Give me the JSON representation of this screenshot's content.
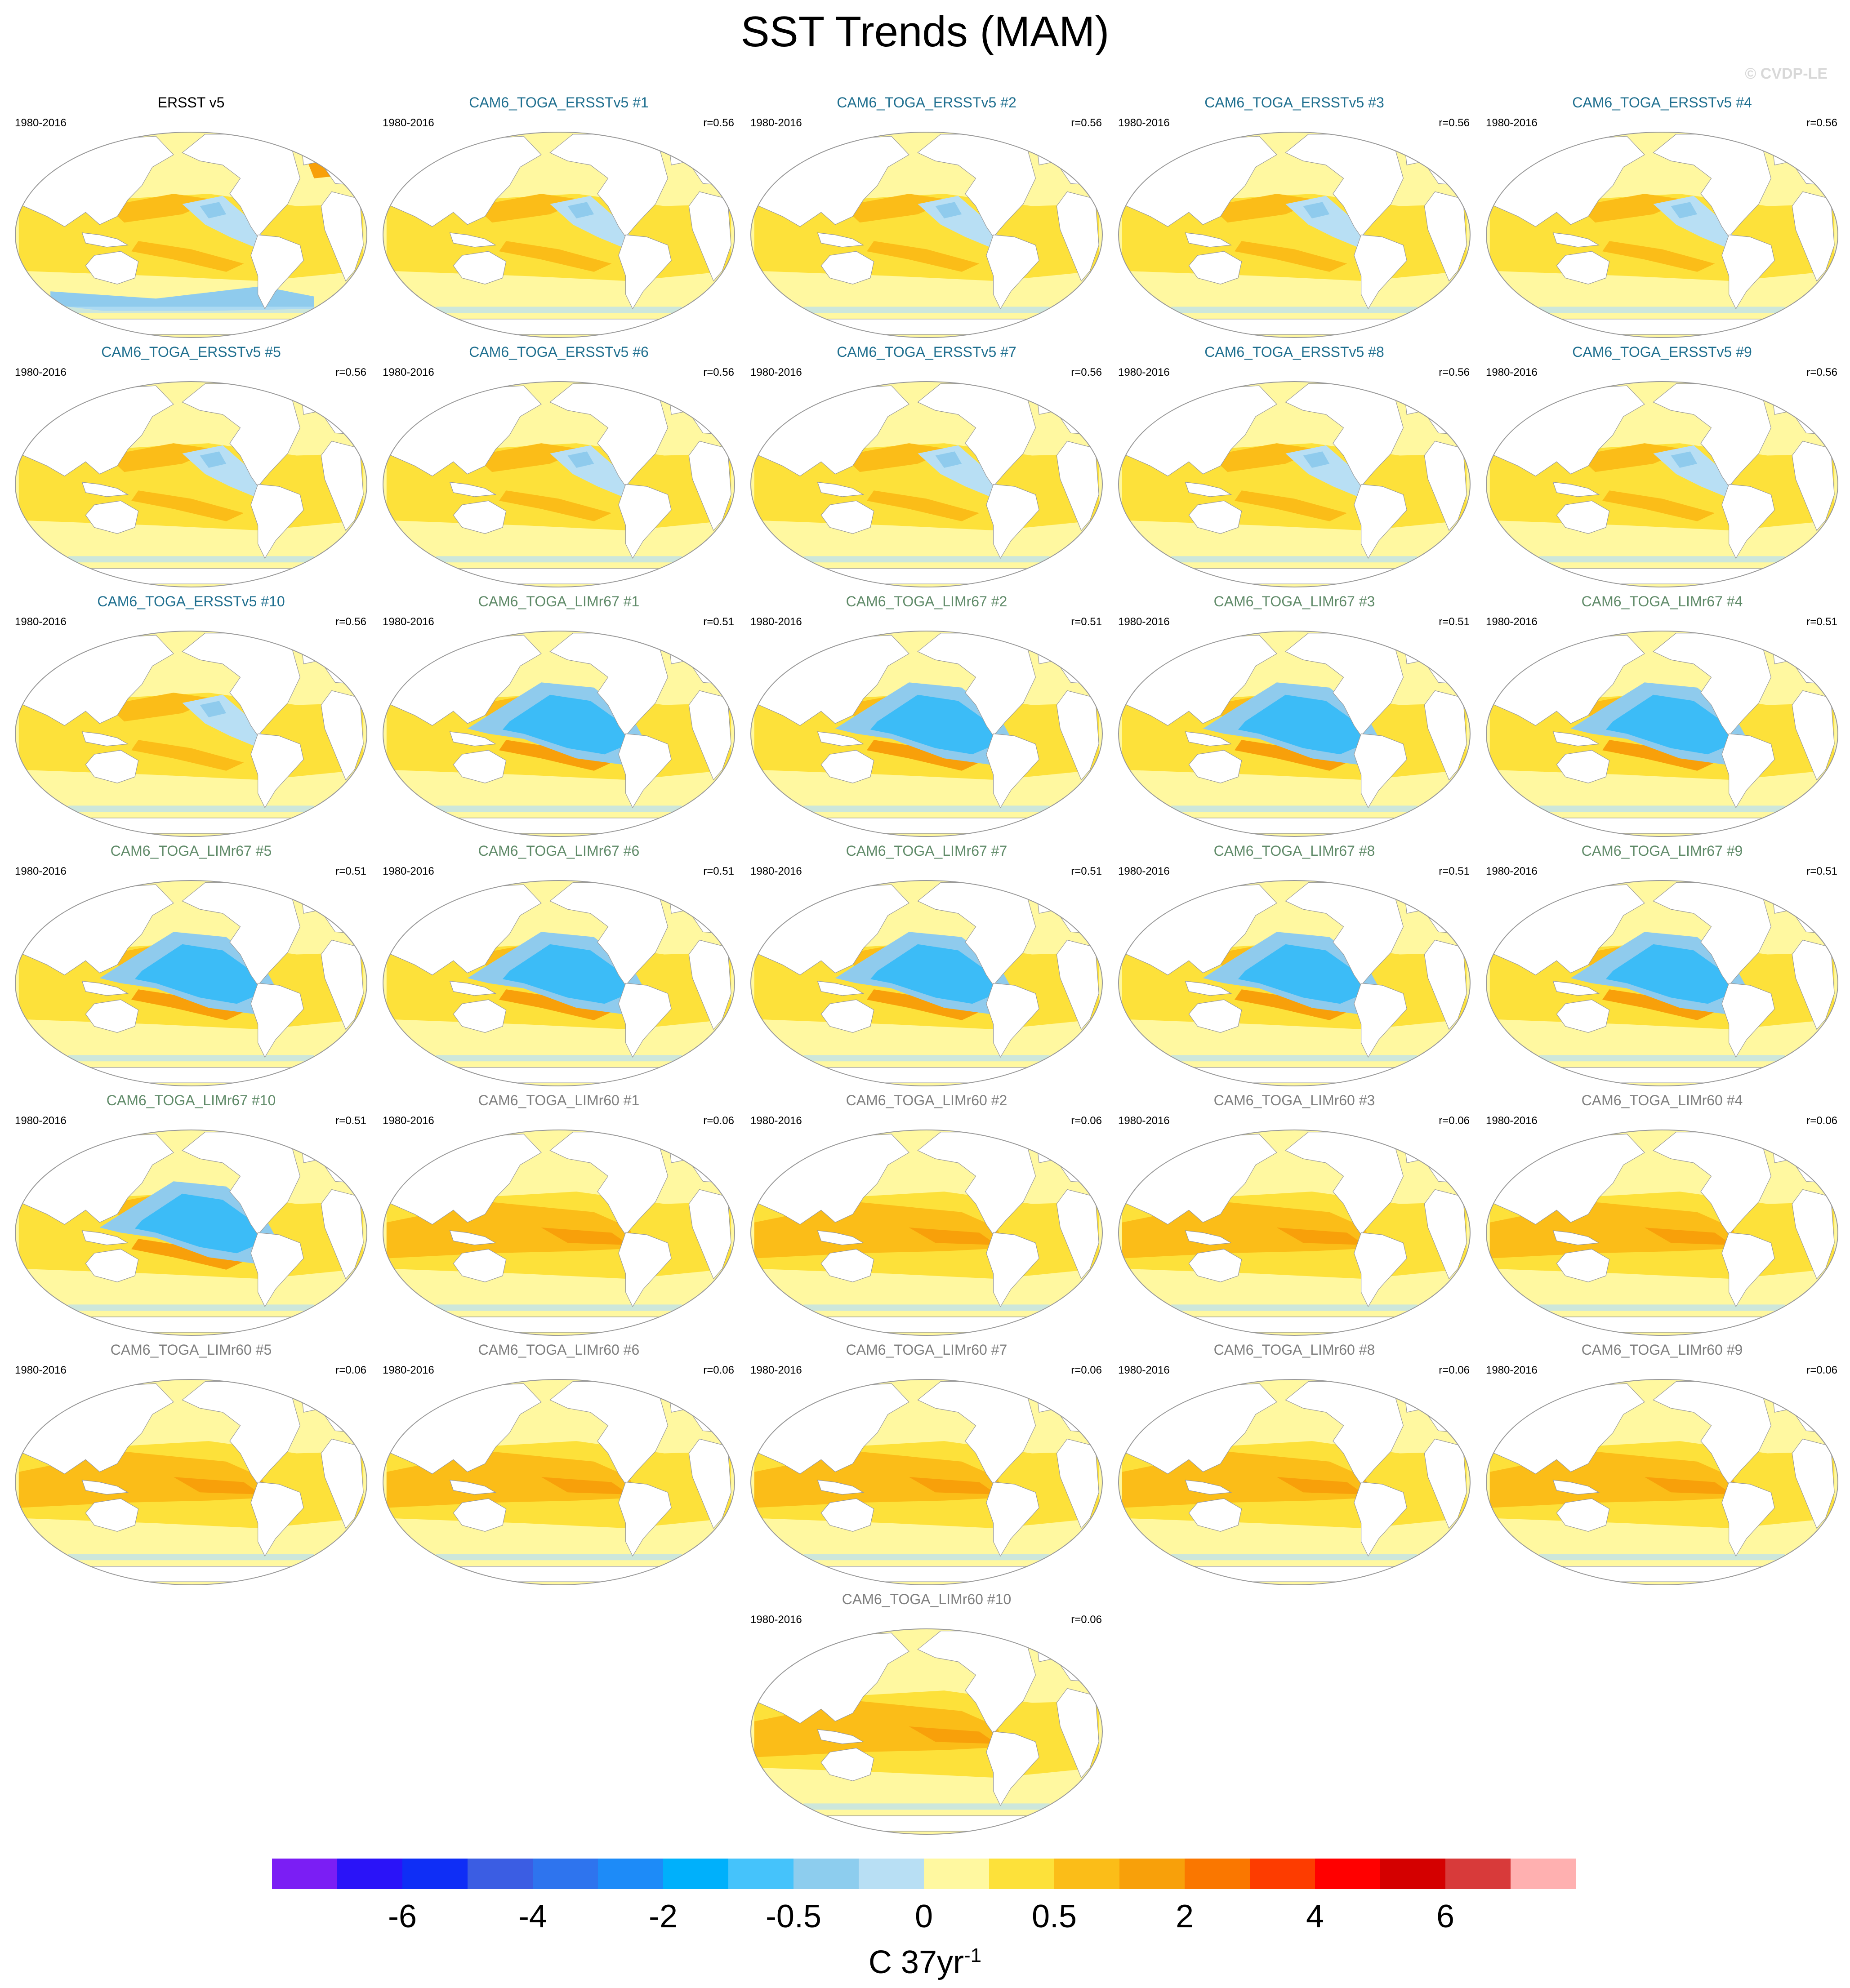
{
  "title": "SST Trends (MAM)",
  "credit": "© CVDP-LE",
  "period": "1980-2016",
  "panels": [
    {
      "title": "ERSST v5",
      "corr": "",
      "group": "obs"
    },
    {
      "title": "CAM6_TOGA_ERSSTv5 #1",
      "corr": "r=0.56",
      "group": "ersst"
    },
    {
      "title": "CAM6_TOGA_ERSSTv5 #2",
      "corr": "r=0.56",
      "group": "ersst"
    },
    {
      "title": "CAM6_TOGA_ERSSTv5 #3",
      "corr": "r=0.56",
      "group": "ersst"
    },
    {
      "title": "CAM6_TOGA_ERSSTv5 #4",
      "corr": "r=0.56",
      "group": "ersst"
    },
    {
      "title": "CAM6_TOGA_ERSSTv5 #5",
      "corr": "r=0.56",
      "group": "ersst"
    },
    {
      "title": "CAM6_TOGA_ERSSTv5 #6",
      "corr": "r=0.56",
      "group": "ersst"
    },
    {
      "title": "CAM6_TOGA_ERSSTv5 #7",
      "corr": "r=0.56",
      "group": "ersst"
    },
    {
      "title": "CAM6_TOGA_ERSSTv5 #8",
      "corr": "r=0.56",
      "group": "ersst"
    },
    {
      "title": "CAM6_TOGA_ERSSTv5 #9",
      "corr": "r=0.56",
      "group": "ersst"
    },
    {
      "title": "CAM6_TOGA_ERSSTv5 #10",
      "corr": "r=0.56",
      "group": "ersst"
    },
    {
      "title": "CAM6_TOGA_LIMr67 #1",
      "corr": "r=0.51",
      "group": "lim67"
    },
    {
      "title": "CAM6_TOGA_LIMr67 #2",
      "corr": "r=0.51",
      "group": "lim67"
    },
    {
      "title": "CAM6_TOGA_LIMr67 #3",
      "corr": "r=0.51",
      "group": "lim67"
    },
    {
      "title": "CAM6_TOGA_LIMr67 #4",
      "corr": "r=0.51",
      "group": "lim67"
    },
    {
      "title": "CAM6_TOGA_LIMr67 #5",
      "corr": "r=0.51",
      "group": "lim67"
    },
    {
      "title": "CAM6_TOGA_LIMr67 #6",
      "corr": "r=0.51",
      "group": "lim67"
    },
    {
      "title": "CAM6_TOGA_LIMr67 #7",
      "corr": "r=0.51",
      "group": "lim67"
    },
    {
      "title": "CAM6_TOGA_LIMr67 #8",
      "corr": "r=0.51",
      "group": "lim67"
    },
    {
      "title": "CAM6_TOGA_LIMr67 #9",
      "corr": "r=0.51",
      "group": "lim67"
    },
    {
      "title": "CAM6_TOGA_LIMr67 #10",
      "corr": "r=0.51",
      "group": "lim67"
    },
    {
      "title": "CAM6_TOGA_LIMr60 #1",
      "corr": "r=0.06",
      "group": "lim60"
    },
    {
      "title": "CAM6_TOGA_LIMr60 #2",
      "corr": "r=0.06",
      "group": "lim60"
    },
    {
      "title": "CAM6_TOGA_LIMr60 #3",
      "corr": "r=0.06",
      "group": "lim60"
    },
    {
      "title": "CAM6_TOGA_LIMr60 #4",
      "corr": "r=0.06",
      "group": "lim60"
    },
    {
      "title": "CAM6_TOGA_LIMr60 #5",
      "corr": "r=0.06",
      "group": "lim60"
    },
    {
      "title": "CAM6_TOGA_LIMr60 #6",
      "corr": "r=0.06",
      "group": "lim60"
    },
    {
      "title": "CAM6_TOGA_LIMr60 #7",
      "corr": "r=0.06",
      "group": "lim60"
    },
    {
      "title": "CAM6_TOGA_LIMr60 #8",
      "corr": "r=0.06",
      "group": "lim60"
    },
    {
      "title": "CAM6_TOGA_LIMr60 #9",
      "corr": "r=0.06",
      "group": "lim60"
    },
    {
      "title": "CAM6_TOGA_LIMr60 #10",
      "corr": "r=0.06",
      "group": "lim60"
    }
  ],
  "title_colors": {
    "obs": "#000000",
    "ersst": "#1f6f8f",
    "lim67": "#5f8a68",
    "lim60": "#7f7f7f"
  },
  "map_colors": {
    "land": "#ffffff",
    "base": "#fff8a0",
    "warm1": "#fde13a",
    "warm2": "#fbbd18",
    "warm3": "#f8a00a",
    "cool1": "#b8dff4",
    "cool2": "#8fcbed",
    "cool3": "#3cbcf7",
    "outline": "#999999"
  },
  "colorbar": {
    "colors": [
      "#7b1ef4",
      "#2a13f8",
      "#0f2ef6",
      "#3b5de3",
      "#2e74ee",
      "#1d8bf8",
      "#00b0fb",
      "#45c3fb",
      "#8dcdee",
      "#b8dff4",
      "#fff8a0",
      "#fde13a",
      "#fbbd18",
      "#f8a00a",
      "#fa7700",
      "#fd3c00",
      "#ff0000",
      "#d40000",
      "#d83a3a",
      "#ffb0b0"
    ],
    "ticks": [
      {
        "label": "-6",
        "boundary": 2
      },
      {
        "label": "-4",
        "boundary": 4
      },
      {
        "label": "-2",
        "boundary": 6
      },
      {
        "label": "-0.5",
        "boundary": 8
      },
      {
        "label": "0",
        "boundary": 10
      },
      {
        "label": "0.5",
        "boundary": 12
      },
      {
        "label": "2",
        "boundary": 14
      },
      {
        "label": "4",
        "boundary": 16
      },
      {
        "label": "6",
        "boundary": 18
      }
    ],
    "units": "C 37yr",
    "units_exp": "-1"
  }
}
